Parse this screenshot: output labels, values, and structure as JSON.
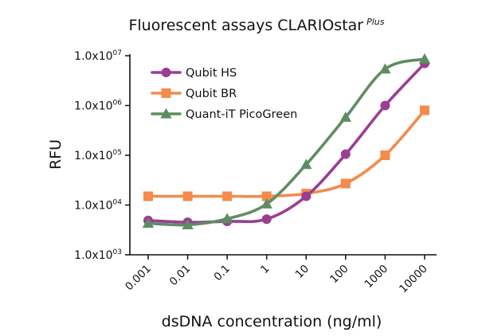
{
  "chart_data": {
    "type": "line",
    "title": "Fluorescent assays CLARIOstar",
    "title_superscript": "Plus",
    "xlabel": "dsDNA concentration (ng/ml)",
    "ylabel": "RFU",
    "x_scale": "log",
    "y_scale": "log",
    "x": [
      0.001,
      0.01,
      0.1,
      1,
      10,
      100,
      1000,
      10000
    ],
    "x_tick_labels": [
      "0.001",
      "0.01",
      "0.1",
      "1",
      "10",
      "100",
      "1000",
      "10000"
    ],
    "ylim": [
      1000,
      10000000
    ],
    "y_ticks": [
      1000,
      10000,
      100000,
      1000000,
      10000000
    ],
    "y_tick_labels": [
      {
        "base": "1.0x10",
        "exp": "03"
      },
      {
        "base": "1.0x10",
        "exp": "04"
      },
      {
        "base": "1.0x10",
        "exp": "05"
      },
      {
        "base": "1.0x10",
        "exp": "06"
      },
      {
        "base": "1.0x10",
        "exp": "07"
      }
    ],
    "grid": false,
    "legend_position": "top-left",
    "series": [
      {
        "name": "Qubit HS",
        "color": "#9b3d93",
        "marker": "circle",
        "values": [
          4900,
          4500,
          4700,
          5200,
          15000,
          105000,
          1000000,
          7000000
        ]
      },
      {
        "name": "Qubit BR",
        "color": "#f58a4b",
        "marker": "square",
        "values": [
          15000,
          15000,
          15000,
          15000,
          17000,
          27000,
          100000,
          800000
        ]
      },
      {
        "name": "Quant-iT PicoGreen",
        "color": "#5e8d62",
        "marker": "triangle",
        "values": [
          4300,
          4000,
          5300,
          10500,
          65000,
          580000,
          5400000,
          8600000
        ]
      }
    ]
  }
}
